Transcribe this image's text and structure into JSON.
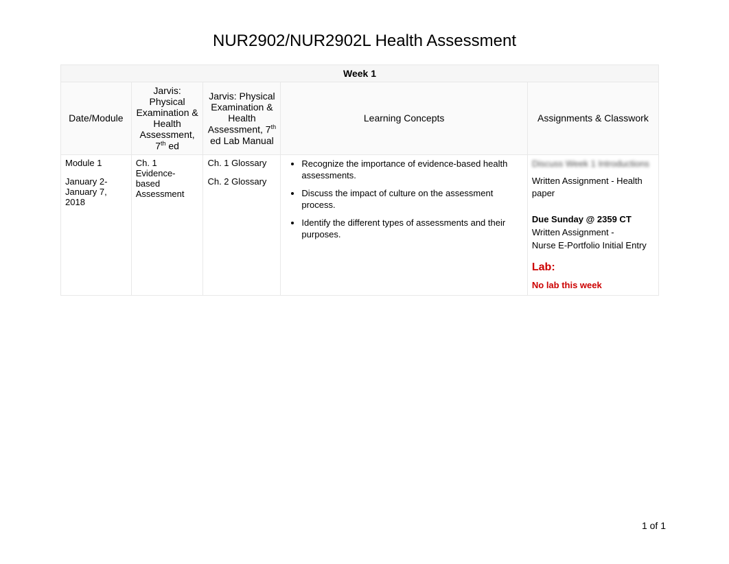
{
  "title": "NUR2902/NUR2902L Health Assessment",
  "week_header": "Week 1",
  "columns": {
    "date": "Date/Module",
    "text1_pre": "Jarvis: Physical Examination & Health Assessment, 7",
    "text1_sup": "th",
    "text1_post": " ed",
    "text2_pre": "Jarvis: Physical Examination & Health Assessment, 7",
    "text2_sup": "th",
    "text2_post": " ed Lab Manual",
    "concepts": "Learning Concepts",
    "assign": "Assignments & Classwork"
  },
  "row": {
    "module": "Module 1",
    "dates": "January 2- January 7, 2018",
    "reading": "Ch. 1 Evidence-based Assessment",
    "lab_gloss1": "Ch. 1 Glossary",
    "lab_gloss2": "Ch. 2 Glossary",
    "concepts": [
      "Recognize the importance of evidence-based health assessments.",
      "Discuss the impact of culture on the assessment process.",
      "Identify the different types of assessments and their purposes."
    ],
    "assign": {
      "blur_line": "Discuss Week 1 Introductions",
      "written1a": "Written Assignment - Health",
      "written1b": "paper",
      "due": "Due Sunday @ 2359 CT",
      "written2a": "Written Assignment -",
      "written2b": "Nurse E-Portfolio Initial Entry",
      "lab_heading": "Lab:",
      "lab_text": "No lab this week"
    }
  },
  "page_num": "1 of 1"
}
